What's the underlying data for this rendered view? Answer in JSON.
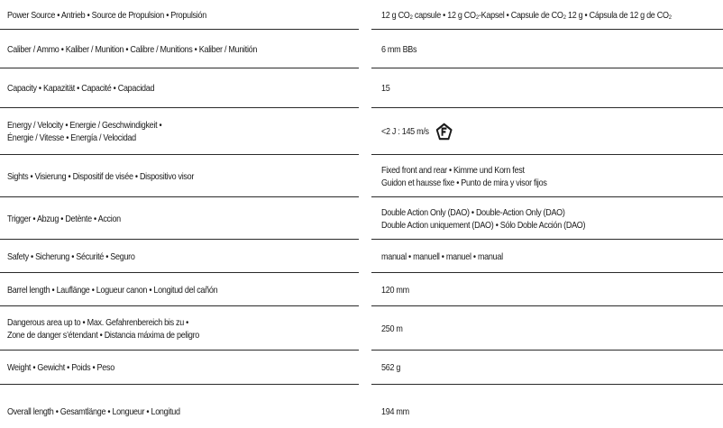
{
  "specs": {
    "rows": [
      {
        "label": "Power Source • Antrieb • Source de Propulsion • Propulsión",
        "value": "12 g CO₂ capsule • 12 g CO₂-Kapsel • Capsule de CO₂ 12 g • Cápsula de 12 g de CO₂"
      },
      {
        "label": "Caliber / Ammo • Kaliber / Munition • Calibre / Munitions • Kaliber / Munitión",
        "value": "6 mm BBs"
      },
      {
        "label": "Capacity • Kapazität • Capacité • Capacidad",
        "value": "15"
      },
      {
        "label_lines": [
          "Energy / Velocity • Energie / Geschwindigkeit •",
          "Énergie / Vitesse • Energía / Velocidad"
        ],
        "value": "<2 J : 145 m/s",
        "value_icon": "F-in-pentagon-mark-icon"
      },
      {
        "label": "Sights • Visierung • Dispositif de visée • Dispositivo visor",
        "value_lines": [
          "Fixed front and rear • Kimme und Korn fest",
          "Guidon et hausse fixe • Punto de mira y visor fijos"
        ]
      },
      {
        "label": "Trigger • Abzug • Detènte • Accion",
        "value_lines": [
          "Double Action Only (DAO) • Double-Action Only (DAO)",
          "Double Action uniquement (DAO) • Sólo Doble Acción (DAO)"
        ]
      },
      {
        "label": "Safety • Sicherung • Sécurité • Seguro",
        "value": "manual • manuell • manuel • manual"
      },
      {
        "label": "Barrel length • Lauflänge • Logueur canon • Longitud del cañón",
        "value": "120 mm"
      },
      {
        "label_lines": [
          "Dangerous area up to • Max. Gefahrenbereich bis zu •",
          "Zone de danger s’étendant • Distancia máxima de peligro"
        ],
        "value": "250 m"
      },
      {
        "label": "Weight • Gewicht • Poids • Peso",
        "value": "562 g"
      },
      {
        "label": "Overall length • Gesamtlänge • Longueur • Longitud",
        "value": "194 mm"
      }
    ]
  },
  "colors": {
    "text": "#1a1a1a",
    "rule": "#2a2a2a",
    "background": "#ffffff"
  }
}
